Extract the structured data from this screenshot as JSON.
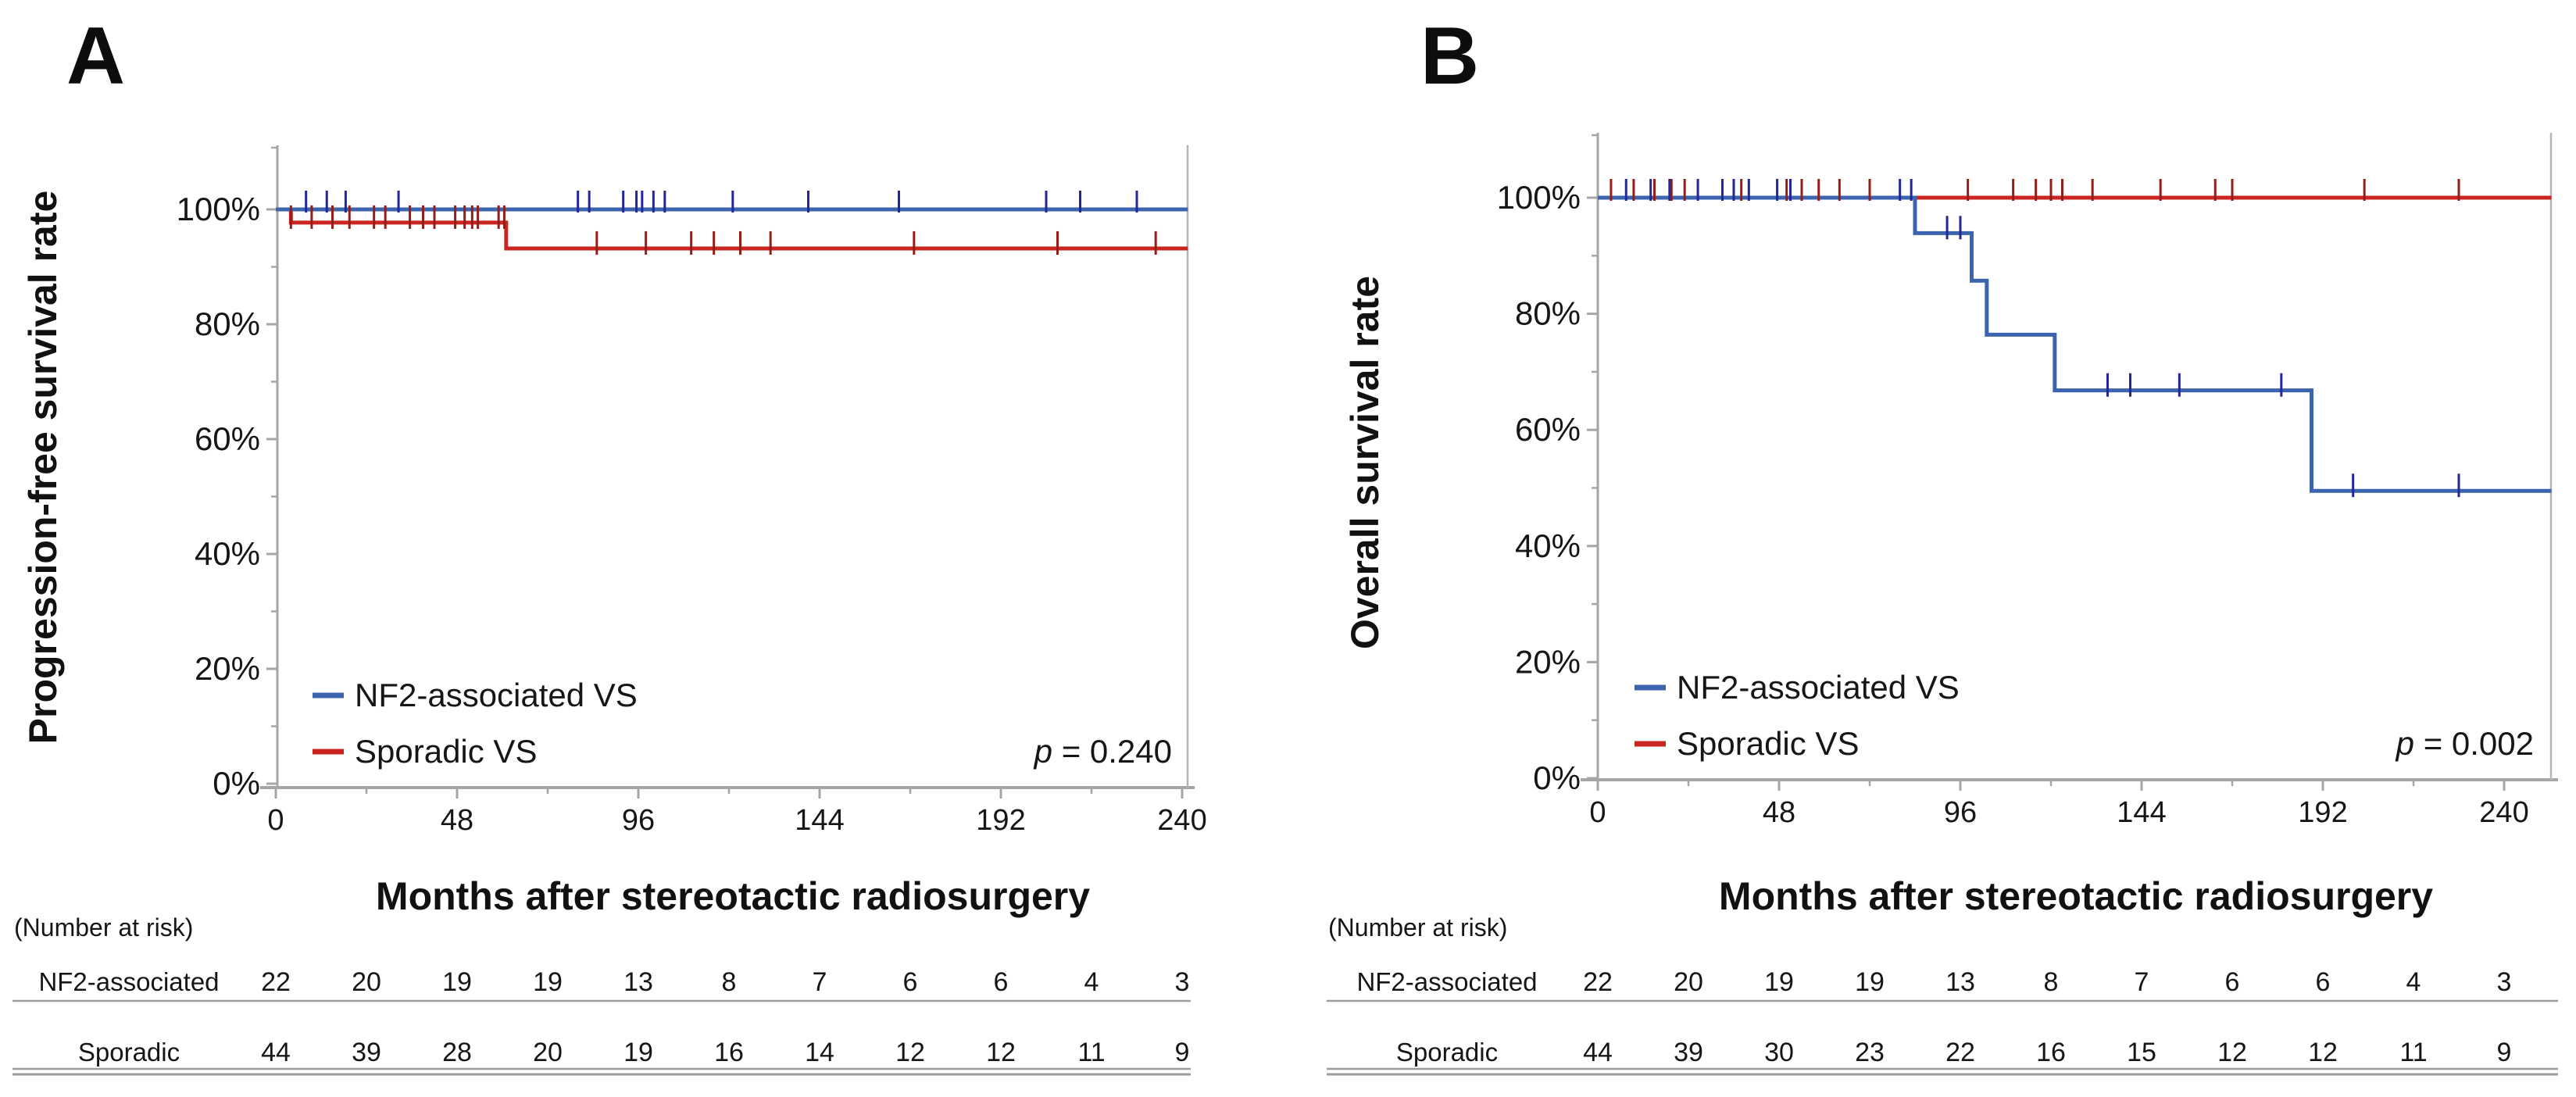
{
  "figure": {
    "panel_labels": [
      "A",
      "B"
    ],
    "accent_colors": {
      "nf2_blue": "#3c63ae",
      "sporadic_red": "#cb2522",
      "axis_gray": "#a6a6a6"
    }
  },
  "chart_data": [
    {
      "type": "line",
      "subtype": "kaplan-meier-step",
      "panel": "A",
      "ylabel": "Progression-free survival rate",
      "xlabel": "Months after stereotactic radiosurgery",
      "xlim": [
        0,
        241.5
      ],
      "ylim": [
        0,
        100
      ],
      "xticks": [
        0,
        48,
        96,
        144,
        192,
        240
      ],
      "xminors": [
        24,
        72,
        120,
        168,
        216
      ],
      "yticks": [
        "0%",
        "20%",
        "40%",
        "60%",
        "80%",
        "100%"
      ],
      "ytick_values": [
        0,
        20,
        40,
        60,
        80,
        100
      ],
      "grid": "off",
      "legend_position": "inside-bottom-left",
      "p_value": "p = 0.240",
      "series": [
        {
          "name": "NF2-associated VS",
          "color": "#3c63ae",
          "censor_color": "#23279b",
          "steps": [
            {
              "x": 0,
              "y": 100
            }
          ],
          "end_x": 241.5,
          "censors": [
            {
              "x": 8,
              "y": 100
            },
            {
              "x": 13.5,
              "y": 100
            },
            {
              "x": 18.5,
              "y": 100
            },
            {
              "x": 32.5,
              "y": 100
            },
            {
              "x": 80,
              "y": 100
            },
            {
              "x": 83,
              "y": 100
            },
            {
              "x": 92,
              "y": 100
            },
            {
              "x": 95.5,
              "y": 100
            },
            {
              "x": 97,
              "y": 100
            },
            {
              "x": 100,
              "y": 100
            },
            {
              "x": 103,
              "y": 100
            },
            {
              "x": 121,
              "y": 100
            },
            {
              "x": 141,
              "y": 100
            },
            {
              "x": 165,
              "y": 100
            },
            {
              "x": 204,
              "y": 100
            },
            {
              "x": 213,
              "y": 100
            },
            {
              "x": 228,
              "y": 100
            }
          ]
        },
        {
          "name": "Sporadic VS",
          "color": "#cb2522",
          "censor_color": "#941d18",
          "steps": [
            {
              "x": 0,
              "y": 100
            },
            {
              "x": 4,
              "y": 97.7
            },
            {
              "x": 61,
              "y": 93.2
            }
          ],
          "end_x": 241.5,
          "censors": [
            {
              "x": 4,
              "y": 97.7
            },
            {
              "x": 9.5,
              "y": 97.7
            },
            {
              "x": 15,
              "y": 97.7
            },
            {
              "x": 19.5,
              "y": 97.7
            },
            {
              "x": 26,
              "y": 97.7
            },
            {
              "x": 29,
              "y": 97.7
            },
            {
              "x": 35.5,
              "y": 97.7
            },
            {
              "x": 39,
              "y": 97.7
            },
            {
              "x": 42,
              "y": 97.7
            },
            {
              "x": 47.5,
              "y": 97.7
            },
            {
              "x": 50,
              "y": 97.7
            },
            {
              "x": 52,
              "y": 97.7
            },
            {
              "x": 53.5,
              "y": 97.7
            },
            {
              "x": 59,
              "y": 97.7
            },
            {
              "x": 60.5,
              "y": 97.7
            },
            {
              "x": 85,
              "y": 93.2
            },
            {
              "x": 98,
              "y": 93.2
            },
            {
              "x": 110,
              "y": 93.2
            },
            {
              "x": 116,
              "y": 93.2
            },
            {
              "x": 123,
              "y": 93.2
            },
            {
              "x": 131,
              "y": 93.2
            },
            {
              "x": 169,
              "y": 93.2
            },
            {
              "x": 207,
              "y": 93.2
            },
            {
              "x": 233,
              "y": 93.2
            }
          ]
        }
      ],
      "risk_table": {
        "header": "(Number at risk)",
        "time_points": [
          0,
          24,
          48,
          72,
          96,
          120,
          144,
          168,
          192,
          216,
          240
        ],
        "rows": [
          {
            "label": "NF2-associated",
            "values": [
              22,
              20,
              19,
              19,
              13,
              8,
              7,
              6,
              6,
              4,
              3
            ]
          },
          {
            "label": "Sporadic",
            "values": [
              44,
              39,
              28,
              20,
              19,
              16,
              14,
              12,
              12,
              11,
              9
            ]
          }
        ]
      }
    },
    {
      "type": "line",
      "subtype": "kaplan-meier-step",
      "panel": "B",
      "ylabel": "Overall survival rate",
      "xlabel": "Months after stereotactic radiosurgery",
      "xlim": [
        0,
        252.5
      ],
      "ylim": [
        0,
        100
      ],
      "xticks": [
        0,
        48,
        96,
        144,
        192,
        240
      ],
      "xminors": [
        24,
        72,
        120,
        168,
        216
      ],
      "yticks": [
        "0%",
        "20%",
        "40%",
        "60%",
        "80%",
        "100%"
      ],
      "ytick_values": [
        0,
        20,
        40,
        60,
        80,
        100
      ],
      "grid": "off",
      "legend_position": "inside-bottom-left",
      "p_value": "p = 0.002",
      "series": [
        {
          "name": "NF2-associated VS",
          "color": "#3c63ae",
          "censor_color": "#23279b",
          "steps": [
            {
              "x": 0,
              "y": 100
            },
            {
              "x": 84,
              "y": 93.9
            },
            {
              "x": 99,
              "y": 85.7
            },
            {
              "x": 103,
              "y": 76.4
            },
            {
              "x": 121,
              "y": 66.8
            },
            {
              "x": 189,
              "y": 49.5
            }
          ],
          "end_x": 252.5,
          "censors": [
            {
              "x": 7.5,
              "y": 100
            },
            {
              "x": 14,
              "y": 100
            },
            {
              "x": 19,
              "y": 100
            },
            {
              "x": 26.5,
              "y": 100
            },
            {
              "x": 33,
              "y": 100
            },
            {
              "x": 36,
              "y": 100
            },
            {
              "x": 40,
              "y": 100
            },
            {
              "x": 47.5,
              "y": 100
            },
            {
              "x": 51,
              "y": 100
            },
            {
              "x": 80,
              "y": 100
            },
            {
              "x": 83,
              "y": 100
            },
            {
              "x": 92.5,
              "y": 93.9
            },
            {
              "x": 96,
              "y": 93.9
            },
            {
              "x": 135,
              "y": 66.8
            },
            {
              "x": 141,
              "y": 66.8
            },
            {
              "x": 154,
              "y": 66.8
            },
            {
              "x": 181,
              "y": 66.8
            },
            {
              "x": 200,
              "y": 49.5
            },
            {
              "x": 228,
              "y": 49.5
            }
          ]
        },
        {
          "name": "Sporadic VS",
          "color": "#cb2522",
          "censor_color": "#941d18",
          "steps": [
            {
              "x": 0,
              "y": 100
            }
          ],
          "end_x": 252.5,
          "censors": [
            {
              "x": 3.5,
              "y": 100
            },
            {
              "x": 9.5,
              "y": 100
            },
            {
              "x": 15,
              "y": 100
            },
            {
              "x": 19.5,
              "y": 100
            },
            {
              "x": 23,
              "y": 100
            },
            {
              "x": 38,
              "y": 100
            },
            {
              "x": 50,
              "y": 100
            },
            {
              "x": 54,
              "y": 100
            },
            {
              "x": 58.5,
              "y": 100
            },
            {
              "x": 64,
              "y": 100
            },
            {
              "x": 72,
              "y": 100
            },
            {
              "x": 98,
              "y": 100
            },
            {
              "x": 110,
              "y": 100
            },
            {
              "x": 116,
              "y": 100
            },
            {
              "x": 120,
              "y": 100
            },
            {
              "x": 123,
              "y": 100
            },
            {
              "x": 131,
              "y": 100
            },
            {
              "x": 149,
              "y": 100
            },
            {
              "x": 163.5,
              "y": 100
            },
            {
              "x": 168,
              "y": 100
            },
            {
              "x": 203,
              "y": 100
            },
            {
              "x": 228,
              "y": 100
            }
          ]
        }
      ],
      "risk_table": {
        "header": "(Number at risk)",
        "time_points": [
          0,
          24,
          48,
          72,
          96,
          120,
          144,
          168,
          192,
          216,
          240
        ],
        "rows": [
          {
            "label": "NF2-associated",
            "values": [
              22,
              20,
              19,
              19,
              13,
              8,
              7,
              6,
              6,
              4,
              3
            ]
          },
          {
            "label": "Sporadic",
            "values": [
              44,
              39,
              30,
              23,
              22,
              16,
              15,
              12,
              12,
              11,
              9
            ]
          }
        ]
      }
    }
  ]
}
